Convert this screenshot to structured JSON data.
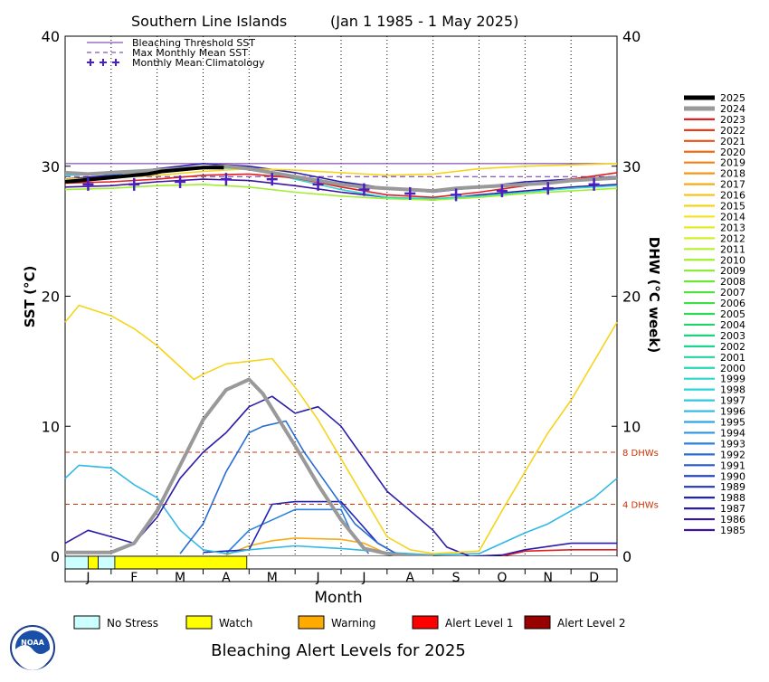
{
  "chart_data": {
    "type": "line",
    "title_left": "Southern Line Islands",
    "title_right": "(Jan 1 1985 - 1 May 2025)",
    "xlabel": "Month",
    "ylabel_left": "SST (°C)",
    "ylabel_right": "DHW (°C week)",
    "ylim": [
      0,
      40
    ],
    "yticks": [
      0,
      10,
      20,
      30,
      40
    ],
    "months": [
      "J",
      "F",
      "M",
      "A",
      "M",
      "J",
      "J",
      "A",
      "S",
      "O",
      "N",
      "D"
    ],
    "bleaching_threshold_sst": 30.2,
    "max_monthly_mean_sst": 29.2,
    "climatology": [
      28.6,
      28.6,
      28.8,
      29.0,
      29.0,
      28.6,
      28.2,
      27.9,
      27.8,
      28.1,
      28.3,
      28.6
    ],
    "dhw_markers": [
      {
        "value": 8,
        "label": "8 DHWs"
      },
      {
        "value": 4,
        "label": "4 DHWs"
      }
    ],
    "plot_legend": [
      {
        "label": "Bleaching Threshold SST",
        "style": "solid",
        "color": "#6a2aa0"
      },
      {
        "label": "Max Monthly Mean SST",
        "style": "dashed",
        "color": "#6a2aa0"
      },
      {
        "label": "Monthly Mean Climatology",
        "style": "plus",
        "color": "#4b1fc0"
      }
    ],
    "years": [
      "2025",
      "2024",
      "2023",
      "2022",
      "2021",
      "2020",
      "2019",
      "2018",
      "2017",
      "2016",
      "2015",
      "2014",
      "2013",
      "2012",
      "2011",
      "2010",
      "2009",
      "2008",
      "2007",
      "2006",
      "2005",
      "2004",
      "2003",
      "2002",
      "2001",
      "2000",
      "1999",
      "1998",
      "1997",
      "1996",
      "1995",
      "1994",
      "1993",
      "1992",
      "1991",
      "1990",
      "1989",
      "1988",
      "1987",
      "1986",
      "1985"
    ],
    "year_colors": [
      "#000000",
      "#999999",
      "#e02020",
      "#e83a18",
      "#ee5014",
      "#f26a12",
      "#f48012",
      "#f69614",
      "#f6ac16",
      "#f6c018",
      "#f6d41c",
      "#f4e420",
      "#e6ec24",
      "#d0f028",
      "#b8f02c",
      "#a0ee30",
      "#86ea34",
      "#6ee638",
      "#54e23e",
      "#3ede48",
      "#2ed854",
      "#24d466",
      "#1ed27a",
      "#1ed290",
      "#20d4a4",
      "#22d6b8",
      "#26d8ca",
      "#2ad4d8",
      "#2ec8e0",
      "#30b8e4",
      "#2ea6e4",
      "#2c94e2",
      "#2a80dc",
      "#286cd4",
      "#2658cc",
      "#2446c4",
      "#2234bc",
      "#2024b4",
      "#2a1caa",
      "#3418a4",
      "#3e149e"
    ],
    "sst_series": [
      {
        "year": "2025",
        "x": [
          0.0,
          0.3,
          0.6,
          0.9,
          1.2,
          1.5,
          1.8,
          2.1,
          2.4,
          2.7,
          3.0,
          3.3,
          3.45
        ],
        "y": [
          28.8,
          28.9,
          29.0,
          29.1,
          29.2,
          29.3,
          29.4,
          29.6,
          29.7,
          29.8,
          29.9,
          29.9,
          29.9
        ]
      },
      {
        "year": "2024",
        "x": [
          0.0,
          0.5,
          1.0,
          1.5,
          2.0,
          2.5,
          3.0,
          3.5,
          4.0,
          4.5,
          5.0,
          5.5,
          6.0,
          6.5,
          7.0,
          7.5,
          8.0,
          8.5,
          9.0,
          9.5,
          10.0,
          10.5,
          11.0,
          11.5,
          12.0
        ],
        "y": [
          29.5,
          29.4,
          29.5,
          29.6,
          29.7,
          29.8,
          29.9,
          30.0,
          29.8,
          29.5,
          29.2,
          28.9,
          28.6,
          28.4,
          28.3,
          28.2,
          28.1,
          28.3,
          28.4,
          28.5,
          28.6,
          28.7,
          28.9,
          29.0,
          29.1
        ]
      },
      {
        "year": "2023",
        "x": [
          0.0,
          1.0,
          2.0,
          3.0,
          4.0,
          5.0,
          6.0,
          7.0,
          8.0,
          9.0,
          10.0,
          11.0,
          12.0
        ],
        "y": [
          28.7,
          28.8,
          29.0,
          29.3,
          29.4,
          29.1,
          28.4,
          27.8,
          27.6,
          28.0,
          28.5,
          29.0,
          29.5
        ]
      },
      {
        "year": "2015",
        "x": [
          0.0,
          1.0,
          2.0,
          3.0,
          4.0,
          5.0,
          6.0,
          7.0,
          8.0,
          9.0,
          10.0,
          11.0,
          12.0
        ],
        "y": [
          29.0,
          29.1,
          29.3,
          29.6,
          29.8,
          29.7,
          29.5,
          29.3,
          29.4,
          29.8,
          30.0,
          30.1,
          30.2
        ]
      },
      {
        "year": "2010",
        "x": [
          0.0,
          1.0,
          2.0,
          3.0,
          4.0,
          5.0,
          6.0,
          7.0,
          8.0,
          9.0,
          10.0,
          11.0,
          12.0
        ],
        "y": [
          28.2,
          28.3,
          28.5,
          28.6,
          28.4,
          28.0,
          27.7,
          27.5,
          27.4,
          27.6,
          27.9,
          28.1,
          28.3
        ]
      },
      {
        "year": "1998",
        "x": [
          0.0,
          1.0,
          2.0,
          3.0,
          4.0,
          5.0,
          6.0,
          7.0,
          8.0,
          9.0,
          10.0,
          11.0,
          12.0
        ],
        "y": [
          29.3,
          29.4,
          29.6,
          29.9,
          29.8,
          29.0,
          28.2,
          27.6,
          27.5,
          27.7,
          28.0,
          28.3,
          28.5
        ]
      },
      {
        "year": "1987",
        "x": [
          0.0,
          1.0,
          2.0,
          3.0,
          4.0,
          5.0,
          6.0,
          7.0,
          8.0,
          9.0,
          10.0,
          11.0,
          12.0
        ],
        "y": [
          29.0,
          29.3,
          29.8,
          30.2,
          30.0,
          29.5,
          28.8,
          28.3,
          28.0,
          28.4,
          28.8,
          29.0,
          29.2
        ]
      },
      {
        "year": "1985",
        "x": [
          0.0,
          1.0,
          2.0,
          3.0,
          4.0,
          5.0,
          6.0,
          7.0,
          8.0,
          9.0,
          10.0,
          11.0,
          12.0
        ],
        "y": [
          28.4,
          28.5,
          28.8,
          29.0,
          28.9,
          28.5,
          28.0,
          27.6,
          27.4,
          27.8,
          28.1,
          28.4,
          28.6
        ]
      }
    ],
    "dhw_series": [
      {
        "year": "2024",
        "x": [
          0.0,
          0.5,
          1.0,
          1.5,
          2.0,
          2.5,
          3.0,
          3.5,
          4.0,
          4.3,
          4.6,
          5.0,
          5.5,
          6.0,
          6.5,
          7.0,
          7.5,
          8.0
        ],
        "y": [
          0.3,
          0.3,
          0.3,
          1.0,
          3.5,
          7.0,
          10.5,
          12.8,
          13.6,
          12.5,
          10.8,
          8.5,
          5.5,
          2.8,
          0.6,
          0.2,
          0.0,
          0.0
        ]
      },
      {
        "year": "2015",
        "x": [
          0.0,
          0.3,
          1.0,
          1.5,
          2.0,
          2.8,
          3.0,
          3.5,
          4.0,
          4.5,
          5.0,
          5.5,
          6.0,
          6.5,
          7.0,
          7.5,
          8.0,
          8.5,
          9.0,
          9.5,
          10.0,
          10.5,
          11.0,
          11.5,
          12.0
        ],
        "y": [
          18.0,
          19.3,
          18.5,
          17.5,
          16.2,
          13.6,
          14.0,
          14.8,
          15.0,
          15.2,
          13.0,
          10.5,
          7.5,
          4.5,
          1.5,
          0.5,
          0.2,
          0.3,
          0.4,
          3.5,
          6.5,
          9.5,
          12.0,
          15.0,
          18.0
        ]
      },
      {
        "year": "1987",
        "x": [
          0.0,
          0.5,
          1.0,
          1.5,
          2.0,
          2.5,
          3.0,
          3.5,
          4.0,
          4.5,
          5.0,
          5.5,
          6.0,
          6.5,
          7.0,
          7.5,
          8.0,
          8.3,
          8.8,
          9.5,
          10.0,
          11.0,
          12.0
        ],
        "y": [
          1.0,
          2.0,
          1.5,
          1.0,
          3.0,
          6.0,
          8.0,
          9.5,
          11.5,
          12.3,
          11.0,
          11.5,
          10.0,
          7.5,
          5.0,
          3.5,
          2.0,
          0.7,
          0.0,
          0.1,
          0.5,
          1.0,
          1.0
        ]
      },
      {
        "year": "1992",
        "x": [
          2.5,
          3.0,
          3.5,
          4.0,
          4.3,
          4.8,
          5.2,
          5.8,
          6.3,
          6.8,
          7.2,
          7.6
        ],
        "y": [
          0.2,
          2.5,
          6.5,
          9.5,
          10.0,
          10.4,
          8.0,
          5.0,
          2.5,
          1.0,
          0.2,
          0.0
        ]
      },
      {
        "year": "1996",
        "x": [
          0.0,
          0.3,
          1.0,
          1.5,
          2.0,
          2.5,
          3.0,
          3.5,
          4.0,
          5.0,
          6.0,
          7.0,
          8.0,
          9.0,
          9.5,
          10.0,
          10.5,
          11.0,
          11.5,
          12.0
        ],
        "y": [
          6.0,
          7.0,
          6.8,
          5.5,
          4.5,
          2.0,
          0.5,
          0.2,
          0.5,
          0.8,
          0.6,
          0.3,
          0.1,
          0.2,
          1.0,
          1.8,
          2.5,
          3.5,
          4.5,
          6.0
        ]
      },
      {
        "year": "1988",
        "x": [
          3.0,
          4.0,
          4.5,
          5.0,
          6.0,
          6.3,
          6.8,
          7.2
        ],
        "y": [
          0.3,
          0.5,
          4.0,
          4.2,
          4.2,
          3.0,
          1.0,
          0.2
        ]
      },
      {
        "year": "1993",
        "x": [
          3.5,
          4.0,
          4.5,
          5.0,
          6.0,
          6.2,
          6.6
        ],
        "y": [
          0.2,
          2.0,
          2.8,
          3.6,
          3.6,
          2.0,
          0.2
        ]
      },
      {
        "year": "2017",
        "x": [
          3.5,
          4.0,
          4.5,
          5.0,
          6.0,
          6.5,
          7.0
        ],
        "y": [
          0.1,
          0.8,
          1.2,
          1.4,
          1.3,
          1.0,
          0.2
        ]
      },
      {
        "year": "2023",
        "x": [
          9.5,
          10.0,
          11.0,
          12.0
        ],
        "y": [
          0.0,
          0.4,
          0.5,
          0.5
        ]
      }
    ],
    "alert_bar": [
      {
        "start": 0.0,
        "end": 0.5,
        "level": "No Stress"
      },
      {
        "start": 0.5,
        "end": 0.72,
        "level": "Watch"
      },
      {
        "start": 0.72,
        "end": 1.08,
        "level": "No Stress"
      },
      {
        "start": 1.08,
        "end": 3.95,
        "level": "Watch"
      }
    ]
  },
  "alert_legend": [
    {
      "label": "No Stress",
      "color": "#ccffff"
    },
    {
      "label": "Watch",
      "color": "#ffff00"
    },
    {
      "label": "Warning",
      "color": "#ffaa00"
    },
    {
      "label": "Alert Level 1",
      "color": "#ff0000"
    },
    {
      "label": "Alert Level 2",
      "color": "#990000"
    }
  ],
  "bottom_title": "Bleaching Alert Levels for 2025",
  "logo_text": "NOAA"
}
